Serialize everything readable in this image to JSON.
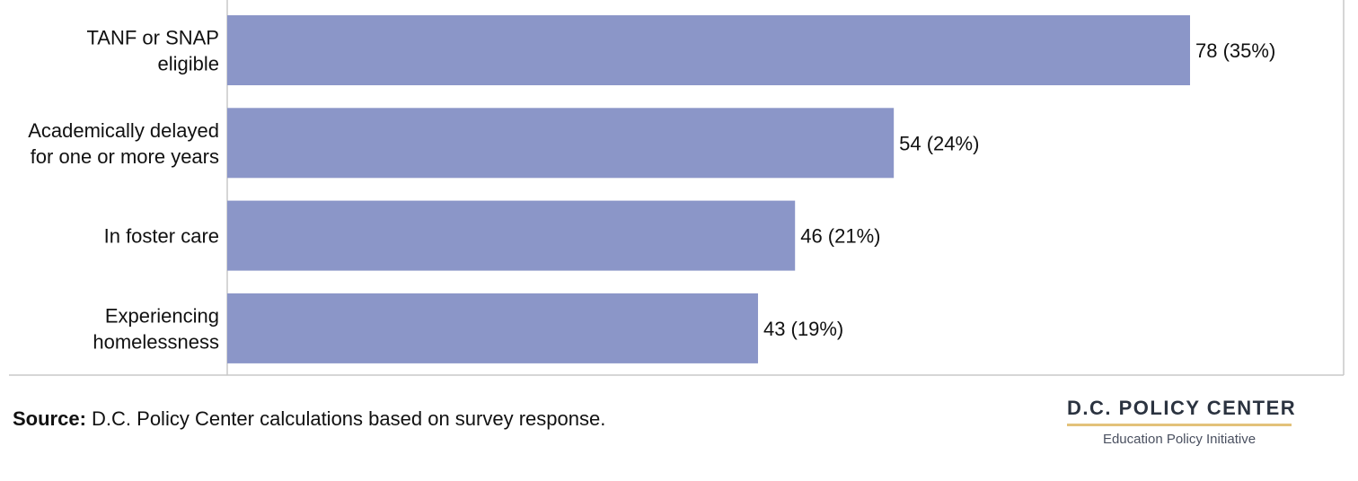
{
  "chart_data": {
    "type": "bar",
    "orientation": "horizontal",
    "categories": [
      [
        "TANF or SNAP",
        "eligible"
      ],
      [
        "Academically delayed",
        "for one or more years"
      ],
      [
        "In foster care"
      ],
      [
        "Experiencing",
        "homelessness"
      ]
    ],
    "values": [
      78,
      54,
      46,
      43
    ],
    "value_labels": [
      "78 (35%)",
      "54 (24%)",
      "46 (21%)",
      "43 (19%)"
    ],
    "xlim": [
      0,
      100
    ],
    "bar_color": "#8b96c8",
    "grid": false
  },
  "source": {
    "label": "Source:",
    "text": " D.C. Policy Center calculations based on survey response."
  },
  "logo": {
    "title": "D.C. POLICY CENTER",
    "subtitle": "Education Policy Initiative",
    "rule_color": "#e3c27a"
  }
}
